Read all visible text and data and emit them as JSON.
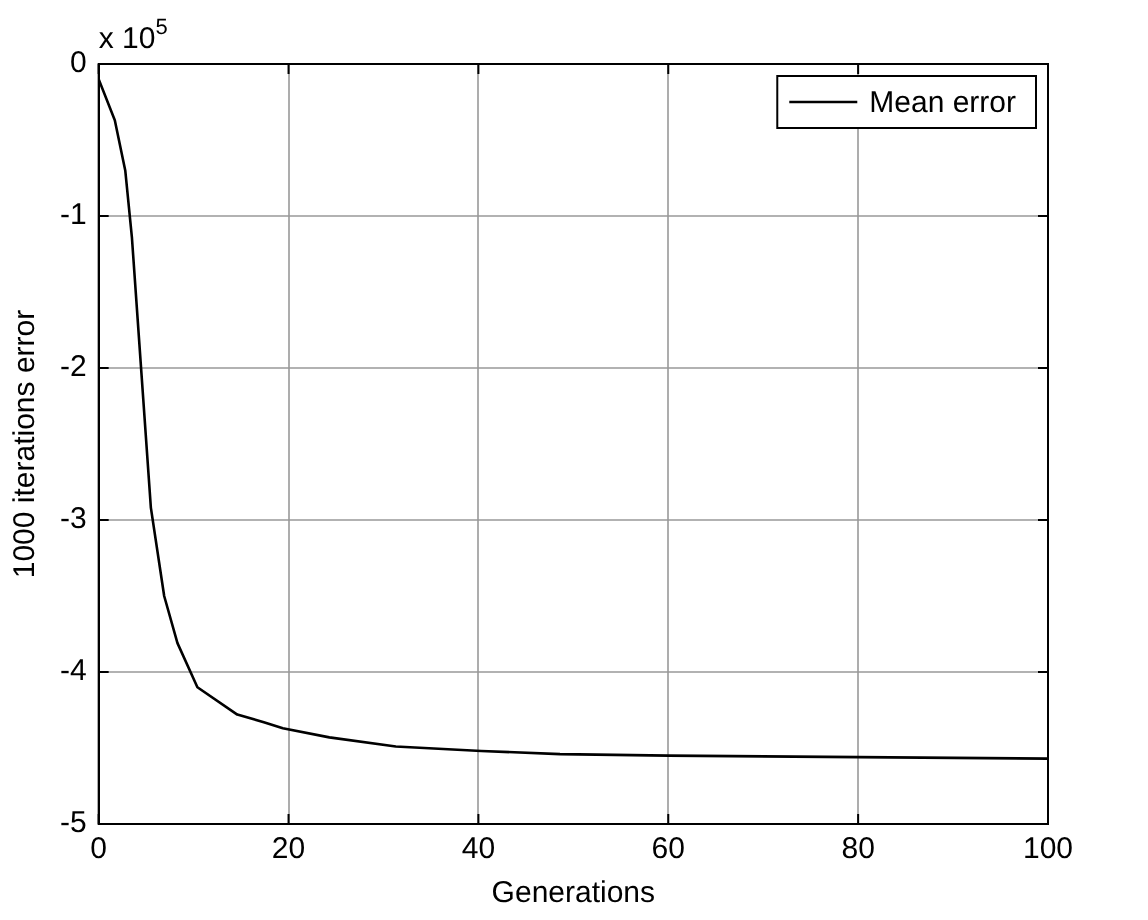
{
  "chart_data": {
    "type": "line",
    "xlabel": "Generations",
    "ylabel": "1000 iterations error",
    "annotations": [
      "x 10$^{5}$"
    ],
    "xlim": [
      0,
      100
    ],
    "xticks": [
      0,
      20,
      40,
      60,
      80,
      100
    ],
    "ylim": [
      -5,
      0
    ],
    "yticks": [
      -5,
      -4,
      -3,
      -2,
      -1,
      0
    ],
    "grid": true,
    "legend": "top right",
    "marker": "none",
    "line_style": "solid",
    "series": [
      {
        "name": "Mean error",
        "color": "#000000",
        "x": [
          0,
          1.7,
          2.8,
          3.5,
          4.5,
          5.5,
          6.9,
          8.3,
          10.4,
          14.6,
          17.4,
          19.4,
          24.3,
          31.3,
          40.3,
          48.6,
          60,
          80,
          100
        ],
        "values": [
          -0.1,
          -0.37,
          -0.7,
          -1.14,
          -2.03,
          -2.92,
          -3.5,
          -3.81,
          -4.1,
          -4.28,
          -4.33,
          -4.37,
          -4.43,
          -4.49,
          -4.52,
          -4.54,
          -4.55,
          -4.56,
          -4.57
        ]
      }
    ]
  }
}
